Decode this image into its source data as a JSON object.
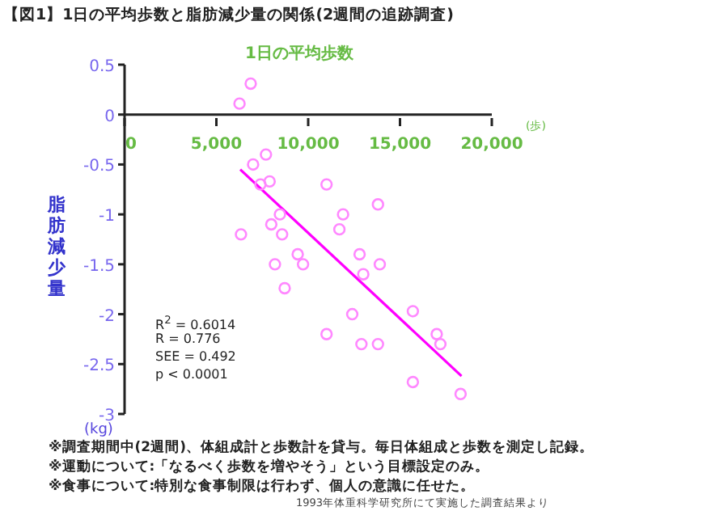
{
  "chart_data": {
    "type": "scatter",
    "title": "【図1】1日の平均歩数と脂肪減少量の関係(2週間の追跡調査)",
    "xlabel": "1日の平均歩数",
    "ylabel": "脂肪減少量",
    "xlim": [
      0,
      20000
    ],
    "xticks": [
      0,
      {
        "value": 5000,
        "label": "5,000"
      },
      {
        "value": 10000,
        "label": "10,000"
      },
      {
        "value": 15000,
        "label": "15,000"
      },
      {
        "value": 20000,
        "label": "20,000"
      }
    ],
    "ylim": [
      -3,
      0.5
    ],
    "yticks": [
      0.5,
      0,
      -0.5,
      -1,
      -1.5,
      -2,
      -2.5,
      -3
    ],
    "grid": false,
    "legend": false,
    "series": [
      {
        "type": "scatter",
        "color": "#ff88ff",
        "marker": "circle",
        "x": [
          6260,
          6870,
          7000,
          7700,
          7400,
          7900,
          11000,
          13800,
          11900,
          8460,
          7990,
          6340,
          8580,
          11700,
          9430,
          9720,
          8190,
          12800,
          13000,
          13900,
          8720,
          12400,
          11000,
          12900,
          13800,
          15700,
          17000,
          17200,
          15700,
          18300
        ],
        "values": [
          0.11,
          0.31,
          -0.5,
          -0.4,
          -0.7,
          -0.67,
          -0.7,
          -0.9,
          -1.0,
          -1.0,
          -1.1,
          -1.2,
          -1.2,
          -1.15,
          -1.4,
          -1.5,
          -1.5,
          -1.4,
          -1.6,
          -1.5,
          -1.74,
          -2.0,
          -2.2,
          -2.3,
          -2.3,
          -1.97,
          -2.2,
          -2.3,
          -2.68,
          -2.8
        ]
      },
      {
        "type": "line",
        "color": "#ff00ff",
        "marker": "none",
        "x": [
          6300,
          18350
        ],
        "values": [
          -0.55,
          -2.62
        ]
      }
    ],
    "annotations": [
      "(歩)",
      "(kg)",
      "R$^{2}$ = 0.6014",
      "R = 0.776",
      "SEE = 0.492",
      "p < 0.0001",
      "※調査期間中(2週間)、体組成計と歩数計を貸与。毎日体組成と歩数を測定し記録。",
      "※運動について:「なるべく歩数を増やそう」という目標設定のみ。",
      "※食事について:特別な食事制限は行わず、個人の意識に任せた。",
      "1993年体重科学研究所にて実施した調査結果より"
    ]
  }
}
